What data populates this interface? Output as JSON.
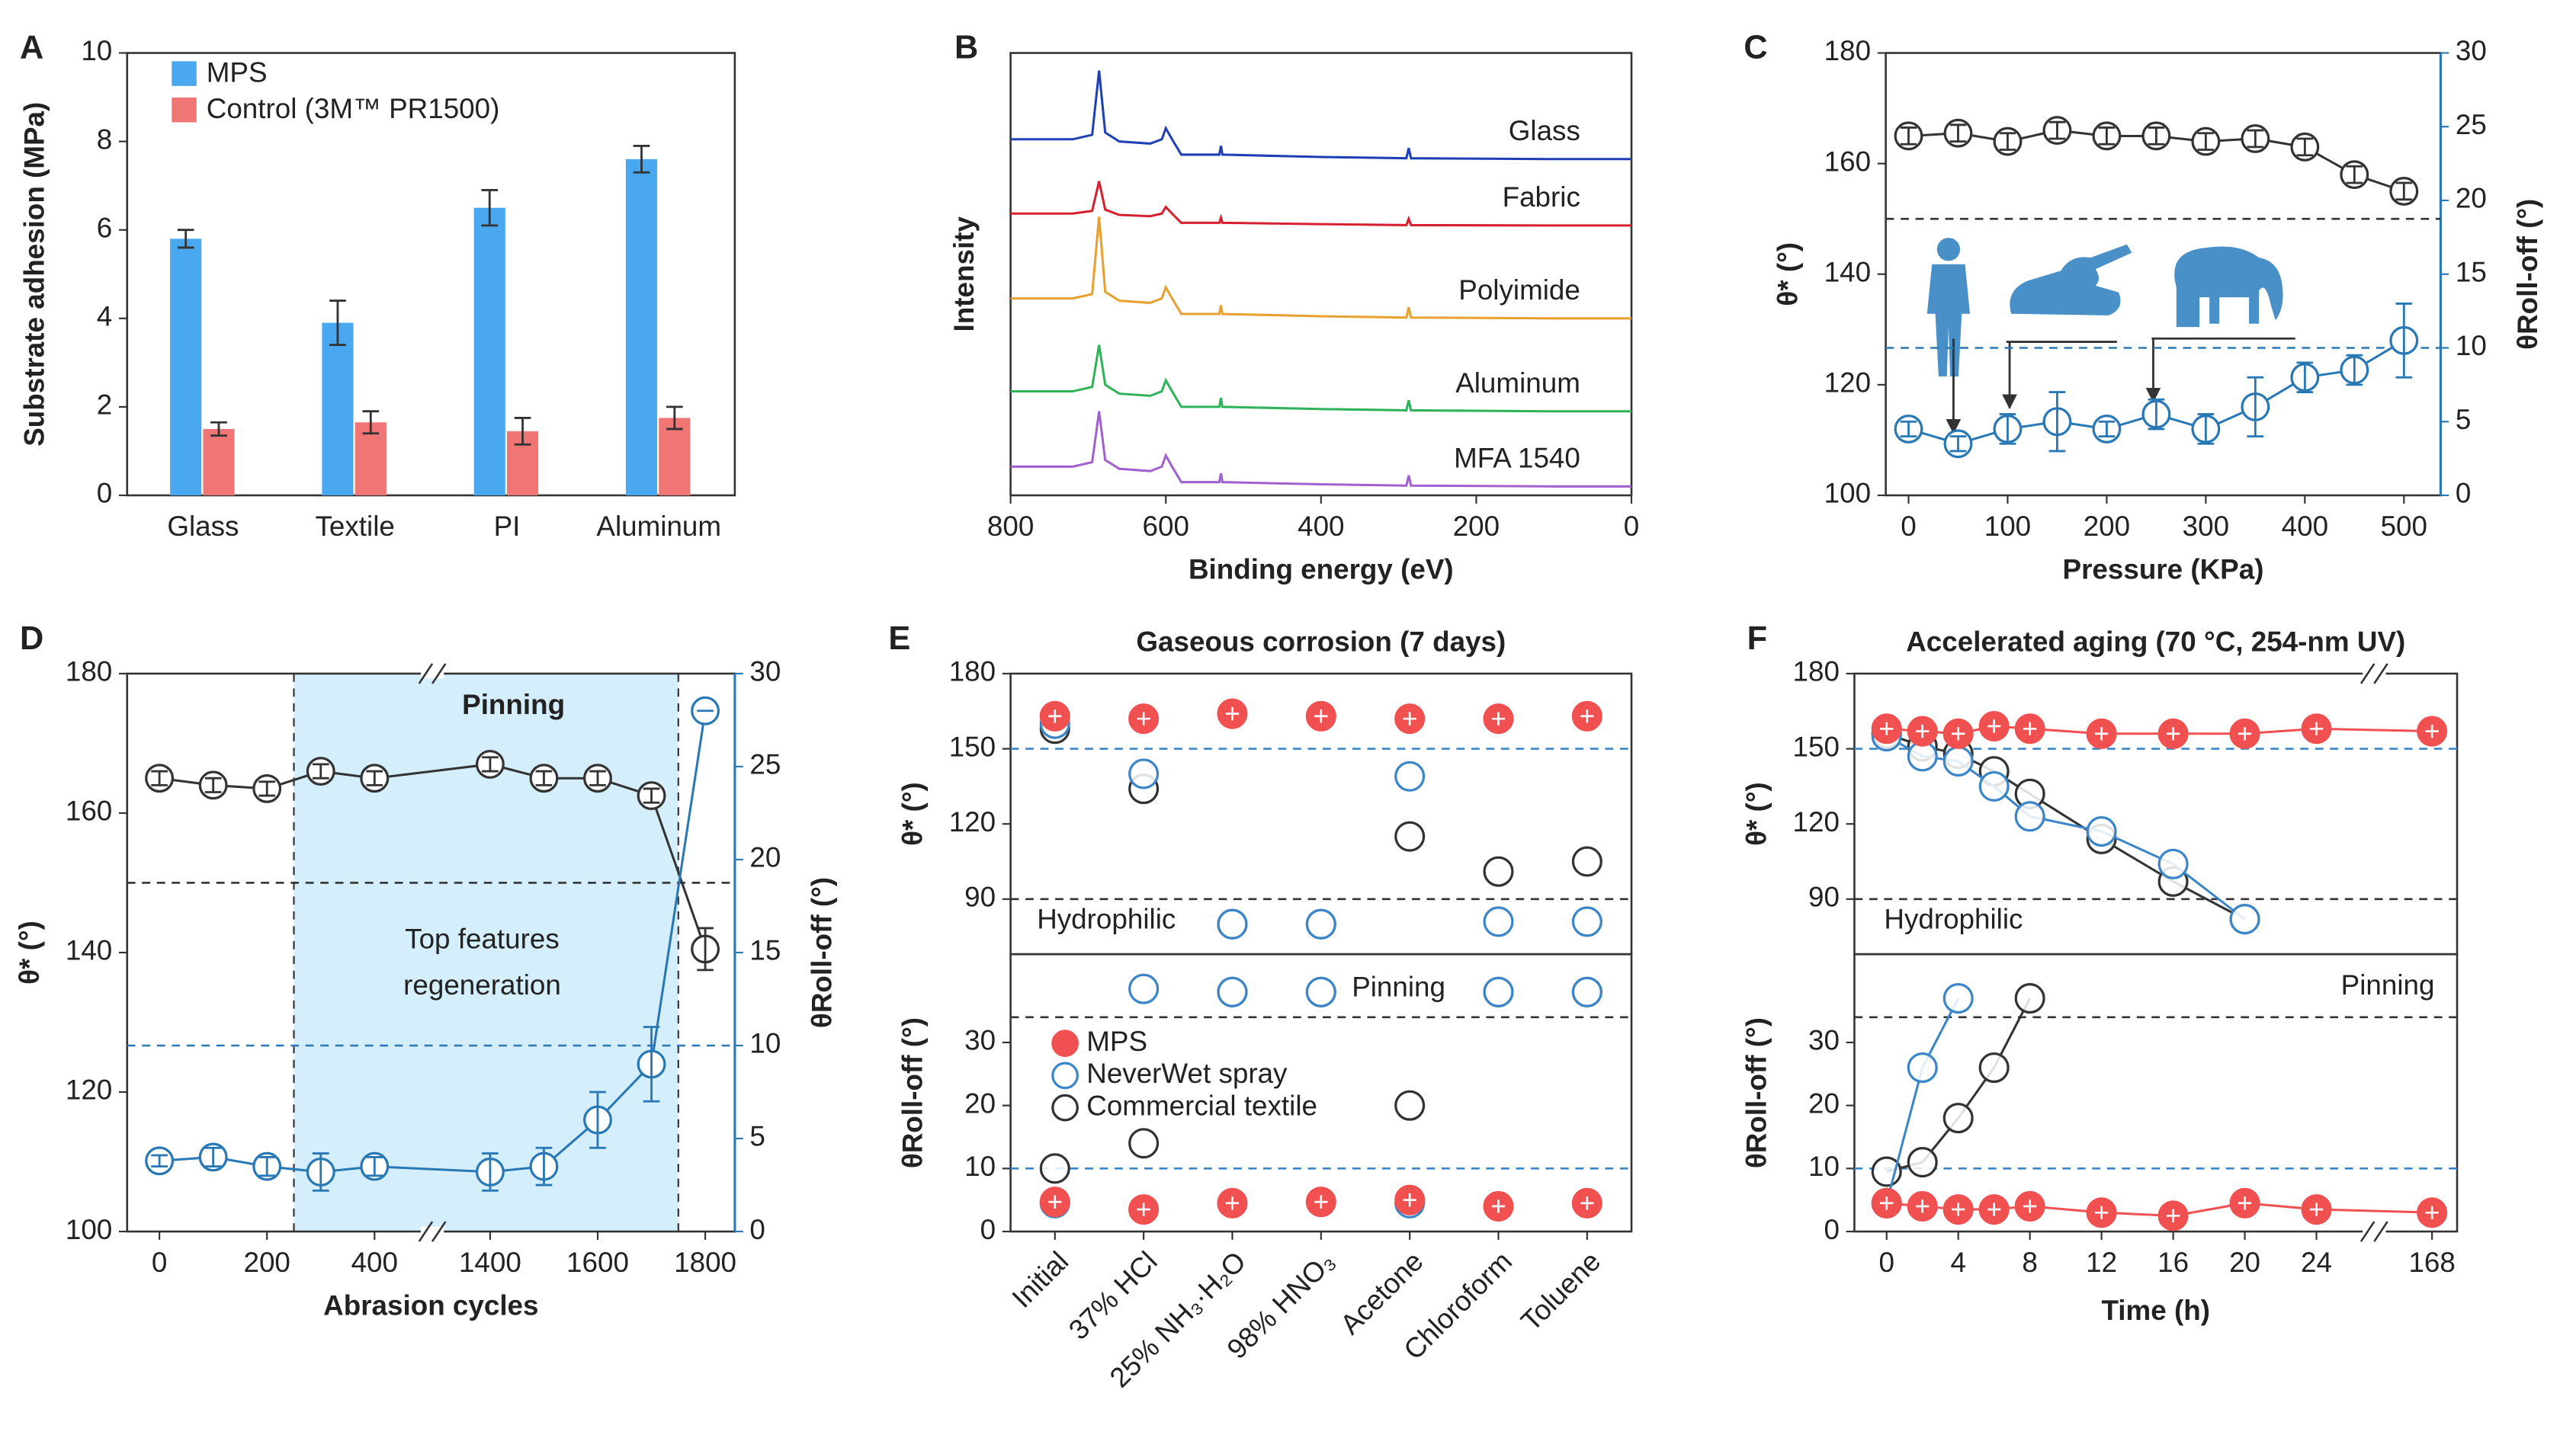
{
  "chart_data": [
    {
      "type": "bar",
      "panel_label": "A",
      "ylabel": "Substrate adhesion (MPa)",
      "categories": [
        "Glass",
        "Textile",
        "PI",
        "Aluminum"
      ],
      "series": [
        {
          "name": "MPS",
          "color": "#4aa8f0",
          "values": [
            5.8,
            3.9,
            6.5,
            7.6
          ],
          "errors": [
            0.2,
            0.5,
            0.4,
            0.3
          ]
        },
        {
          "name": "Control (3M™ PR1500)",
          "color": "#f07575",
          "values": [
            1.5,
            1.65,
            1.45,
            1.75
          ],
          "errors": [
            0.15,
            0.25,
            0.3,
            0.25
          ]
        }
      ],
      "ylim": [
        0,
        10
      ],
      "yticks": [
        0,
        2,
        4,
        6,
        8,
        10
      ],
      "legend": "upper left"
    },
    {
      "type": "line",
      "panel_label": "B",
      "xlabel": "Binding energy (eV)",
      "ylabel": "Intensity",
      "x": [
        800,
        720,
        695,
        686,
        678,
        660,
        620,
        605,
        600,
        592,
        580,
        531,
        529,
        527,
        400,
        290,
        287,
        284,
        100,
        0
      ],
      "xlim": [
        800,
        0
      ],
      "xticks": [
        800,
        600,
        400,
        200,
        0
      ],
      "ylim": [
        0,
        10
      ],
      "series": [
        {
          "name": "Glass",
          "color": "#1f3fb4",
          "values": [
            8.05,
            8.05,
            8.15,
            9.6,
            8.2,
            8.0,
            7.95,
            8.05,
            8.3,
            8.05,
            7.7,
            7.7,
            7.9,
            7.7,
            7.65,
            7.62,
            7.85,
            7.62,
            7.6,
            7.6
          ]
        },
        {
          "name": "Fabric",
          "color": "#d62030",
          "values": [
            6.37,
            6.37,
            6.43,
            7.1,
            6.46,
            6.34,
            6.31,
            6.37,
            6.52,
            6.37,
            6.16,
            6.16,
            6.28,
            6.16,
            6.13,
            6.11,
            6.25,
            6.11,
            6.1,
            6.1
          ]
        },
        {
          "name": "Polyimide",
          "color": "#e8a030",
          "values": [
            4.45,
            4.45,
            4.55,
            6.3,
            4.6,
            4.4,
            4.35,
            4.45,
            4.7,
            4.45,
            4.1,
            4.1,
            4.3,
            4.1,
            4.05,
            4.02,
            4.25,
            4.02,
            4.0,
            4.0
          ]
        },
        {
          "name": "Aluminum",
          "color": "#2fb35a",
          "values": [
            2.35,
            2.35,
            2.45,
            3.4,
            2.5,
            2.3,
            2.25,
            2.35,
            2.6,
            2.35,
            2.0,
            2.0,
            2.2,
            2.0,
            1.95,
            1.92,
            2.15,
            1.92,
            1.9,
            1.9
          ]
        },
        {
          "name": "MFA 1540",
          "color": "#a060d0",
          "values": [
            0.65,
            0.65,
            0.75,
            1.9,
            0.8,
            0.6,
            0.55,
            0.65,
            0.9,
            0.65,
            0.3,
            0.3,
            0.5,
            0.3,
            0.25,
            0.22,
            0.45,
            0.22,
            0.2,
            0.2
          ]
        }
      ]
    },
    {
      "type": "dual-axis",
      "panel_label": "C",
      "xlabel": "Pressure (KPa)",
      "ylabel": "θ* (°)",
      "y2label": "θRoll-off (°)",
      "x": [
        0,
        50,
        100,
        150,
        200,
        250,
        300,
        350,
        400,
        450,
        500
      ],
      "xlim": [
        -23,
        537
      ],
      "xticks": [
        0,
        100,
        200,
        300,
        400,
        500
      ],
      "ylim": [
        100,
        180
      ],
      "yticks": [
        100,
        120,
        140,
        160,
        180
      ],
      "y2lim": [
        0,
        30
      ],
      "y2ticks": [
        0,
        5,
        10,
        15,
        20,
        25,
        30
      ],
      "series": [
        {
          "color": "#333333",
          "values": [
            165,
            165.5,
            164,
            166,
            165,
            165,
            164,
            164.5,
            163,
            158,
            155
          ],
          "errors": [
            1.5,
            1.5,
            1.5,
            1.5,
            1.5,
            1.5,
            1.5,
            1.5,
            1.5,
            1.5,
            1.5
          ]
        },
        {
          "color": "#2878b5",
          "axis": "y2",
          "values": [
            4.5,
            3.5,
            4.5,
            5,
            4.5,
            5.5,
            4.5,
            6,
            8,
            8.5,
            10.5
          ],
          "errors": [
            0.5,
            0.5,
            1,
            2,
            0.5,
            1,
            1,
            2,
            1,
            1,
            2.5
          ]
        }
      ],
      "hlines": [
        {
          "value": 150,
          "color": "#333333"
        },
        {
          "value": 10,
          "axis": "y2",
          "color": "#2878b5"
        }
      ]
    },
    {
      "type": "dual-axis",
      "panel_label": "D",
      "xlabel": "Abrasion cycles",
      "ylabel": "θ* (°)",
      "y2label": "θRoll-off (°)",
      "x": [
        0,
        100,
        200,
        300,
        400,
        1400,
        1500,
        1600,
        1700,
        1800
      ],
      "xlim": [
        -60,
        1855
      ],
      "xticks": [
        0,
        200,
        400,
        1400,
        1600,
        1800
      ],
      "xbreak": [
        400,
        1400
      ],
      "shade": [
        250,
        1750
      ],
      "ylim": [
        100,
        180
      ],
      "yticks": [
        100,
        120,
        140,
        160,
        180
      ],
      "y2lim": [
        0,
        30
      ],
      "y2ticks": [
        0,
        5,
        10,
        15,
        20,
        25,
        30
      ],
      "series": [
        {
          "color": "#333333",
          "values": [
            165,
            164,
            163.5,
            166,
            165,
            167,
            165,
            165,
            162.5,
            140.5
          ],
          "errors": [
            1,
            1,
            1,
            1,
            1,
            1,
            1,
            1,
            1,
            3
          ]
        },
        {
          "color": "#2878b5",
          "axis": "y2",
          "values": [
            3.8,
            4,
            3.5,
            3.2,
            3.5,
            3.2,
            3.5,
            6,
            9,
            28
          ],
          "errors": [
            0.3,
            0.5,
            0.5,
            1,
            0.5,
            1,
            1,
            1.5,
            2,
            0
          ]
        }
      ],
      "hlines": [
        {
          "value": 150,
          "color": "#333333"
        },
        {
          "value": 10,
          "axis": "y2",
          "color": "#2878b5"
        }
      ],
      "annotations": [
        "Pinning",
        "Top features",
        "regeneration"
      ]
    },
    {
      "type": "scatter",
      "panel_label": "E",
      "title": "Gaseous corrosion (7 days)",
      "categories": [
        "Initial",
        "37% HCl",
        "25% NH₃·H₂O",
        "98% HNO₃",
        "Acetone",
        "Chloroform",
        "Toluene"
      ],
      "ylabel": "θ* (°)",
      "roll_off_ylabel": "θRoll-off (°)",
      "ylim": [
        68,
        180
      ],
      "yticks": [
        90,
        120,
        150,
        180
      ],
      "roll_off_ylim": [
        0,
        44
      ],
      "roll_off_yticks": [
        0,
        10,
        20,
        30
      ],
      "series": [
        {
          "name": "MPS",
          "color": "#f05050",
          "filled": true,
          "values": [
            163,
            162,
            164,
            163,
            162,
            162,
            163
          ],
          "roll_off_values": [
            4.7,
            3.5,
            4.5,
            4.7,
            5,
            4,
            4.5
          ]
        },
        {
          "name": "NeverWet spray",
          "color": "#3a86c8",
          "values": [
            160,
            140,
            80,
            80,
            139,
            81,
            81
          ],
          "roll_off_values": [
            4.5,
            38.5,
            38,
            38,
            4.5,
            38,
            38
          ]
        },
        {
          "name": "Commercial textile",
          "color": "#333333",
          "values": [
            158,
            134,
            80,
            80,
            115,
            101,
            105
          ],
          "roll_off_values": [
            10,
            14,
            38,
            38,
            20,
            38,
            38
          ]
        }
      ],
      "hlines": [
        {
          "value": 150,
          "color": "#3a86c8"
        },
        {
          "value": 90,
          "color": "#333333"
        }
      ],
      "roll_off_hlines": [
        {
          "value": 34,
          "color": "#333333"
        },
        {
          "value": 10,
          "color": "#3a86c8"
        }
      ],
      "annotations": [
        "Hydrophilic",
        "Pinning"
      ],
      "legend": "upper left"
    },
    {
      "type": "line",
      "panel_label": "F",
      "title": "Accelerated aging (70 °C, 254-nm UV)",
      "xlabel": "Time (h)",
      "x": [
        0,
        2,
        4,
        6,
        8,
        12,
        16,
        20,
        24,
        168
      ],
      "xlim": [
        -1.8,
        169.4
      ],
      "xticks": [
        0,
        4,
        8,
        12,
        16,
        20,
        24,
        168
      ],
      "xbreak": [
        24,
        168
      ],
      "ylabel": "θ* (°)",
      "roll_off_ylabel": "θRoll-off (°)",
      "ylim": [
        68,
        180
      ],
      "yticks": [
        90,
        120,
        150,
        180
      ],
      "roll_off_ylim": [
        0,
        44
      ],
      "roll_off_yticks": [
        0,
        10,
        20,
        30
      ],
      "series": [
        {
          "name": "MPS",
          "color": "#f05050",
          "filled": true,
          "values": [
            158,
            157,
            156,
            159,
            158,
            156,
            156,
            156,
            158,
            157
          ],
          "roll_off_values": [
            4.5,
            4,
            3.5,
            3.5,
            4,
            3,
            2.5,
            4.5,
            3.5,
            3
          ]
        },
        {
          "name": "NeverWet spray",
          "color": "#3a86c8",
          "values": [
            155,
            147,
            145,
            135,
            123,
            117,
            104,
            82,
            null,
            null
          ],
          "roll_off_values": [
            4.5,
            26,
            37,
            null,
            null,
            null,
            null,
            null,
            null,
            null
          ]
        },
        {
          "name": "Commercial textile",
          "color": "#333333",
          "values": [
            156,
            151,
            148,
            141,
            132,
            114,
            97,
            82,
            null,
            null
          ],
          "roll_off_values": [
            9.5,
            11,
            18,
            26,
            37,
            null,
            null,
            null,
            null,
            null
          ]
        }
      ],
      "hlines": [
        {
          "value": 150,
          "color": "#3a86c8"
        },
        {
          "value": 90,
          "color": "#333333"
        }
      ],
      "roll_off_hlines": [
        {
          "value": 34,
          "color": "#333333"
        },
        {
          "value": 10,
          "color": "#3a86c8"
        }
      ],
      "annotations": [
        "Hydrophilic",
        "Pinning"
      ]
    }
  ]
}
